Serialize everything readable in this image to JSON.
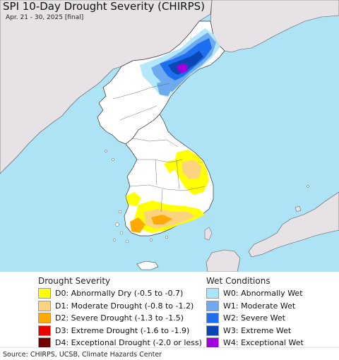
{
  "title": "SPI 10-Day Drought Severity (CHIRPS)",
  "subtitle": "Apr. 21 - 30, 2025 [final]",
  "colors": {
    "ocean": "#aee3f6",
    "land": "#ffffff",
    "foreign_land": "#e6e2e6",
    "D0": "#ffff00",
    "D1": "#fcd37f",
    "D2": "#ffaa00",
    "D3": "#e60000",
    "D4": "#730000",
    "W0": "#aae6fa",
    "W1": "#6eaaf0",
    "W2": "#1e6ef0",
    "W3": "#0a46b4",
    "W4": "#a000dc"
  },
  "legend": {
    "drought_title": "Drought Severity",
    "wet_title": "Wet Conditions",
    "drought": [
      {
        "code": "D0",
        "label": "D0: Abnormally Dry (-0.5 to -0.7)"
      },
      {
        "code": "D1",
        "label": "D1: Moderate Drought (-0.8 to -1.2)"
      },
      {
        "code": "D2",
        "label": "D2: Severe Drought (-1.3 to -1.5)"
      },
      {
        "code": "D3",
        "label": "D3: Extreme Drought (-1.6 to -1.9)"
      },
      {
        "code": "D4",
        "label": "D4: Exceptional Drought (-2.0 or less)"
      }
    ],
    "wet": [
      {
        "code": "W0",
        "label": "W0: Abnormally Wet"
      },
      {
        "code": "W1",
        "label": "W1: Moderate Wet"
      },
      {
        "code": "W2",
        "label": "W2: Severe Wet"
      },
      {
        "code": "W3",
        "label": "W3: Extreme Wet"
      },
      {
        "code": "W4",
        "label": "W4: Exceptional Wet"
      }
    ]
  },
  "source": "Source: CHIRPS, UCSB, Climate Hazards Center"
}
